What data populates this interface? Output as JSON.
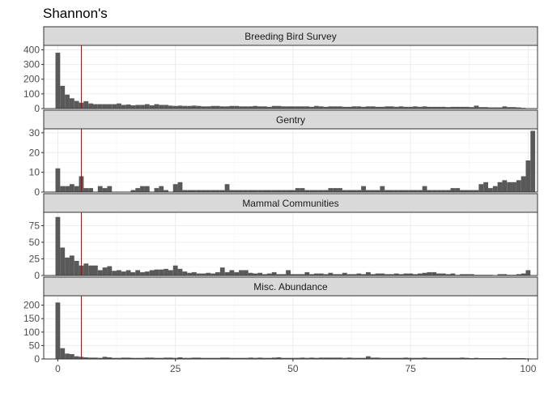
{
  "chart_data": {
    "type": "bar",
    "title": "Shannon's",
    "xlabel": "",
    "ylabel": "",
    "xlim": [
      -3,
      102
    ],
    "x_ticks": [
      0,
      25,
      50,
      75,
      100
    ],
    "bin_width": 1,
    "grid": true,
    "legend": "none",
    "vline": {
      "x": 5,
      "color": "#cc0000"
    },
    "bar_color": "#595959",
    "panels": [
      {
        "name": "Breeding Bird Survey",
        "ylim": [
          0,
          430
        ],
        "y_ticks": [
          0,
          100,
          200,
          300,
          400
        ],
        "counts": [
          380,
          155,
          95,
          70,
          52,
          40,
          50,
          35,
          30,
          30,
          30,
          30,
          30,
          35,
          25,
          28,
          22,
          25,
          25,
          30,
          22,
          30,
          25,
          25,
          20,
          18,
          20,
          18,
          18,
          20,
          18,
          15,
          15,
          18,
          18,
          15,
          15,
          18,
          18,
          15,
          15,
          15,
          18,
          15,
          15,
          12,
          18,
          18,
          15,
          15,
          15,
          15,
          15,
          15,
          12,
          18,
          15,
          12,
          15,
          15,
          15,
          12,
          12,
          15,
          15,
          12,
          15,
          15,
          12,
          12,
          15,
          15,
          12,
          15,
          12,
          12,
          15,
          12,
          15,
          12,
          12,
          12,
          12,
          10,
          12,
          12,
          12,
          12,
          10,
          20,
          10,
          10,
          8,
          8,
          8,
          15,
          10,
          10,
          8,
          5,
          2
        ]
      },
      {
        "name": "Gentry",
        "ylim": [
          0,
          32
        ],
        "y_ticks": [
          0,
          10,
          20,
          30
        ],
        "counts": [
          12,
          3,
          3,
          4,
          3,
          8,
          2,
          2,
          0,
          3,
          2,
          3,
          0,
          0,
          0,
          0,
          1,
          2,
          3,
          3,
          0,
          2,
          3,
          1,
          0,
          4,
          5,
          1,
          1,
          1,
          1,
          1,
          1,
          1,
          1,
          1,
          4,
          1,
          1,
          1,
          1,
          1,
          1,
          1,
          1,
          1,
          1,
          1,
          1,
          1,
          1,
          2,
          2,
          1,
          1,
          1,
          1,
          1,
          2,
          2,
          2,
          1,
          1,
          1,
          1,
          3,
          1,
          1,
          1,
          3,
          1,
          1,
          1,
          1,
          1,
          1,
          1,
          1,
          3,
          1,
          1,
          1,
          1,
          1,
          2,
          2,
          1,
          1,
          1,
          1,
          4,
          5,
          2,
          3,
          5,
          6,
          5,
          5,
          6,
          8,
          16,
          31
        ]
      },
      {
        "name": "Mammal Communities",
        "ylim": [
          0,
          95
        ],
        "y_ticks": [
          0,
          25,
          50,
          75
        ],
        "counts": [
          88,
          42,
          27,
          30,
          22,
          15,
          18,
          15,
          15,
          8,
          12,
          14,
          7,
          8,
          6,
          8,
          5,
          8,
          5,
          6,
          8,
          9,
          9,
          10,
          8,
          15,
          10,
          6,
          4,
          5,
          3,
          3,
          4,
          3,
          5,
          12,
          5,
          8,
          5,
          8,
          8,
          4,
          3,
          4,
          2,
          3,
          5,
          2,
          2,
          8,
          2,
          2,
          2,
          5,
          2,
          3,
          3,
          2,
          4,
          2,
          2,
          4,
          2,
          2,
          3,
          2,
          5,
          2,
          3,
          3,
          2,
          2,
          3,
          2,
          3,
          3,
          2,
          3,
          4,
          5,
          5,
          3,
          3,
          2,
          3,
          1,
          2,
          2,
          2,
          1,
          1,
          1,
          1,
          0,
          2,
          2,
          1,
          1,
          2,
          3,
          8
        ]
      },
      {
        "name": "Misc. Abundance",
        "ylim": [
          0,
          235
        ],
        "y_ticks": [
          0,
          50,
          100,
          150,
          200
        ],
        "counts": [
          210,
          40,
          20,
          18,
          10,
          8,
          6,
          5,
          5,
          4,
          8,
          6,
          4,
          4,
          5,
          5,
          4,
          4,
          4,
          5,
          5,
          4,
          4,
          5,
          5,
          4,
          6,
          4,
          4,
          5,
          5,
          4,
          4,
          4,
          4,
          5,
          5,
          4,
          4,
          4,
          4,
          5,
          4,
          5,
          4,
          4,
          5,
          6,
          4,
          4,
          4,
          4,
          5,
          4,
          5,
          4,
          5,
          5,
          5,
          5,
          5,
          4,
          5,
          4,
          4,
          4,
          10,
          5,
          5,
          4,
          4,
          4,
          4,
          4,
          5,
          4,
          4,
          4,
          5,
          4,
          4,
          4,
          4,
          4,
          4,
          4,
          5,
          4,
          3,
          4,
          3,
          3,
          3,
          3,
          3,
          4,
          3,
          3,
          3,
          3,
          2
        ]
      }
    ]
  }
}
